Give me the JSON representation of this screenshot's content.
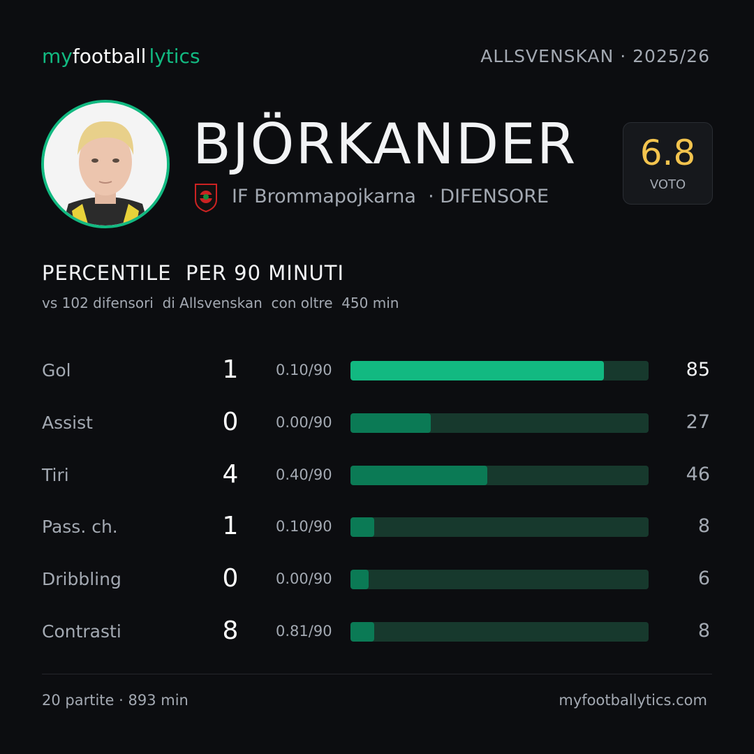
{
  "header": {
    "brand": [
      "my",
      "football",
      "lytics"
    ],
    "league": "ALLSVENSKAN",
    "season": "· 2025/26"
  },
  "player": {
    "name": "BJÖRKANDER",
    "club": "IF Brommapojkarna",
    "role": "· DIFENSORE",
    "rating": "6.8",
    "rating_label": "VOTO"
  },
  "section": {
    "title": "PERCENTILE  PER 90 MINUTI",
    "subtitle": "vs 102 difensori  di Allsvenskan  con oltre  450 min"
  },
  "stats": {
    "xlim": [
      0,
      100
    ],
    "track_color": "#17392d",
    "rows": [
      {
        "label": "Gol",
        "value": 1,
        "per90": "0.10/90",
        "percentile": 85,
        "color": "#12b981"
      },
      {
        "label": "Assist",
        "value": 0,
        "per90": "0.00/90",
        "percentile": 27,
        "color": "#0b7a55"
      },
      {
        "label": "Tiri",
        "value": 4,
        "per90": "0.40/90",
        "percentile": 46,
        "color": "#0b7a55"
      },
      {
        "label": "Pass. ch.",
        "value": 1,
        "per90": "0.10/90",
        "percentile": 8,
        "color": "#0b7a55"
      },
      {
        "label": "Dribbling",
        "value": 0,
        "per90": "0.00/90",
        "percentile": 6,
        "color": "#0b7a55"
      },
      {
        "label": "Contrasti",
        "value": 8,
        "per90": "0.81/90",
        "percentile": 8,
        "color": "#0b7a55"
      }
    ]
  },
  "footer": {
    "summary": "20 partite · 893 min",
    "site": "myfootballytics.com"
  }
}
